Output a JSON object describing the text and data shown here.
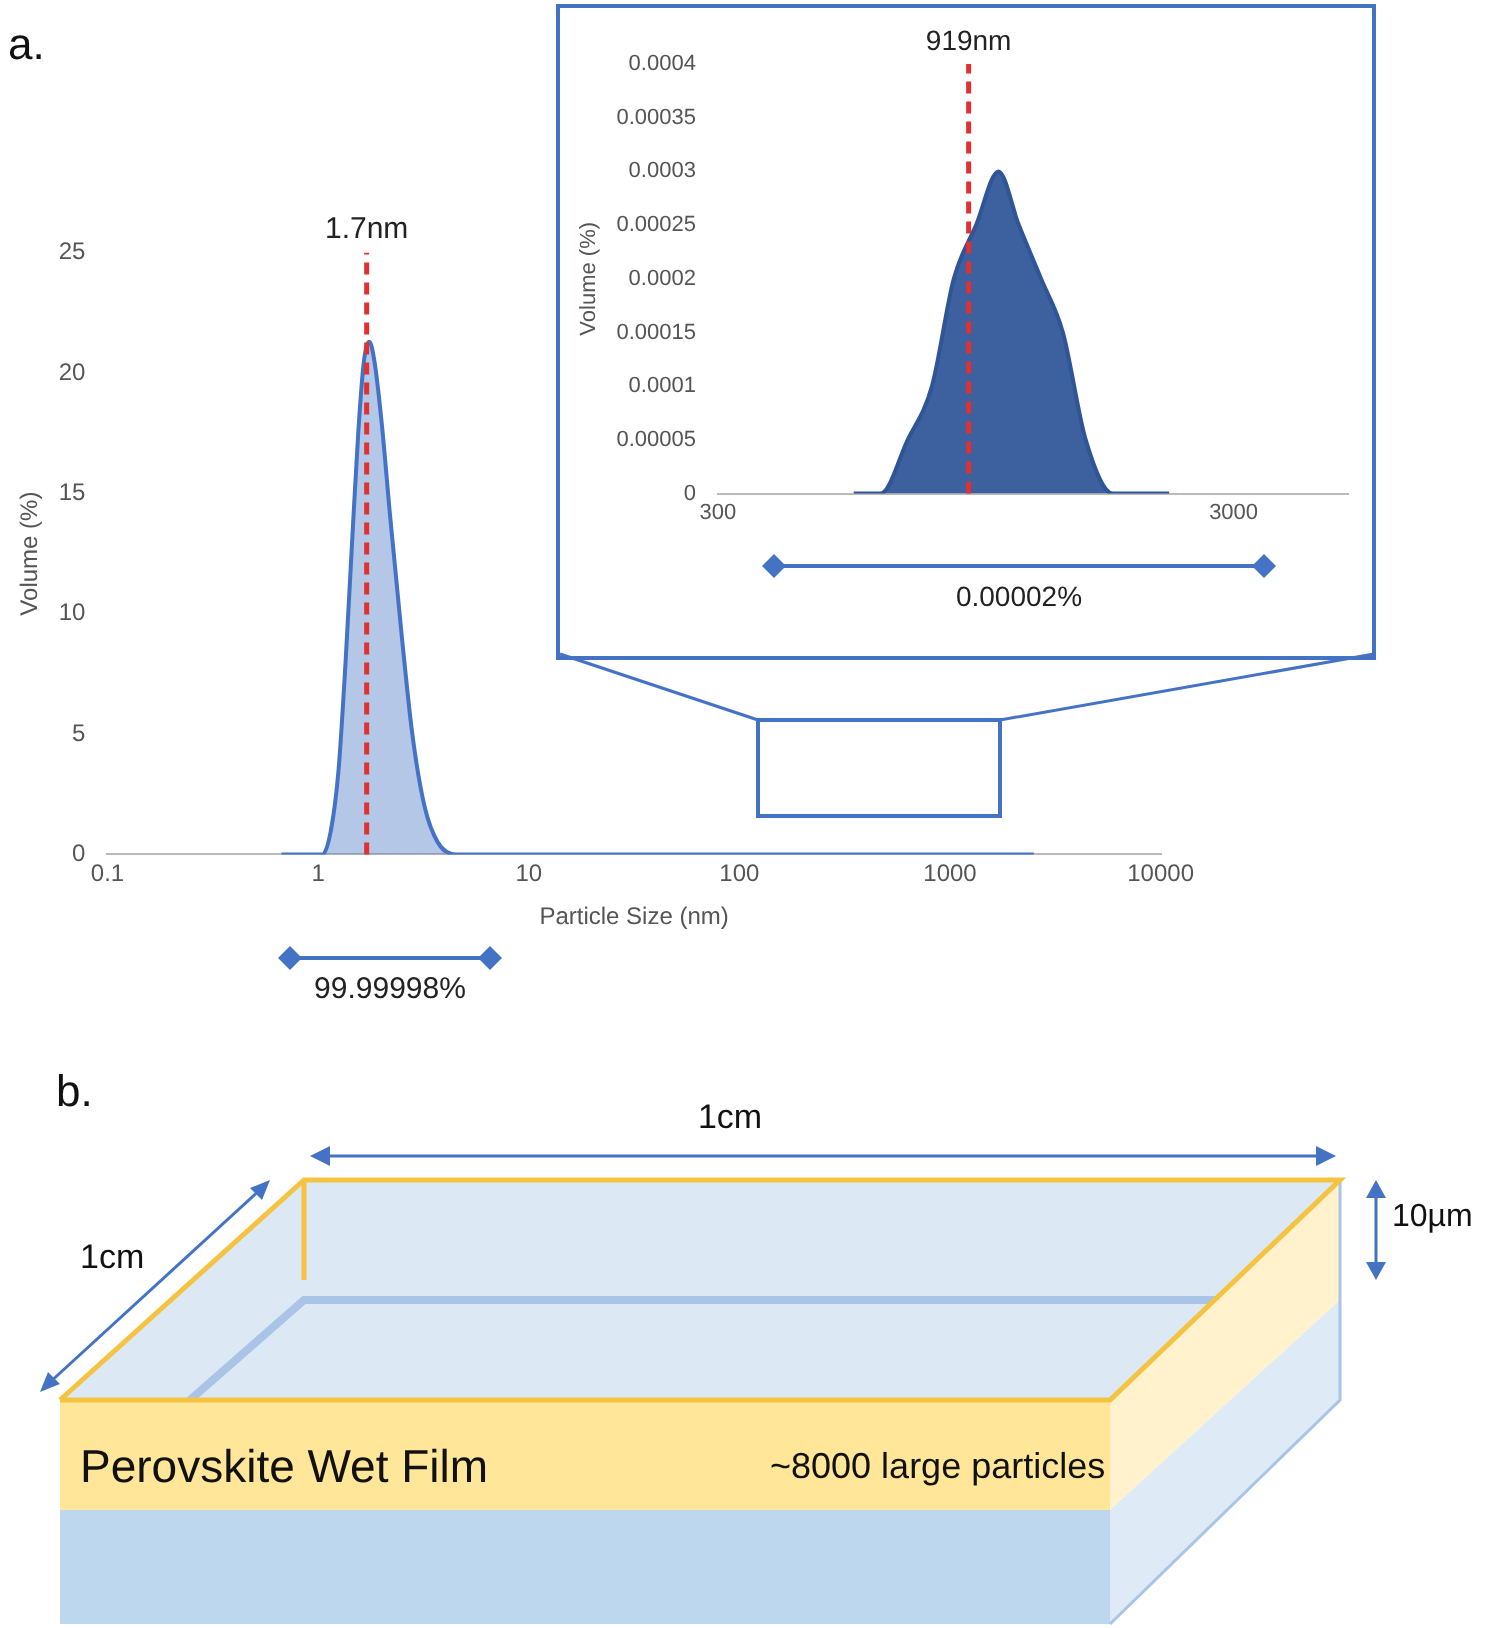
{
  "chart_data": [
    {
      "type": "area",
      "title": "a.",
      "xlabel": "Particle Size (nm)",
      "ylabel": "Volume (%)",
      "log": "x",
      "color": "#4472c4",
      "x": [
        0.67,
        1.05,
        1.15,
        1.25,
        1.35,
        1.45,
        1.55,
        1.65,
        1.75,
        1.85,
        2.0,
        2.2,
        2.5,
        2.8,
        3.2,
        3.7,
        4.5,
        2500
      ],
      "values": [
        0,
        0,
        1,
        3.5,
        8,
        13,
        17.5,
        20.5,
        21.3,
        20.5,
        18,
        14,
        9,
        5,
        2,
        0.5,
        0,
        0
      ],
      "xlim": [
        0.1,
        10000
      ],
      "xticks": [
        0.1,
        1,
        10,
        100,
        1000,
        10000
      ],
      "ylim": [
        0,
        25
      ],
      "yticks": [
        0,
        5,
        10,
        15,
        20,
        25
      ],
      "ref_lines": [
        {
          "axis": "x",
          "value": 1.7,
          "label": "1.7nm",
          "color": "#e03030",
          "line_style": "dashed"
        }
      ],
      "annotations": [
        "99.99998%"
      ],
      "marker": "none"
    },
    {
      "type": "area",
      "ylabel": "Volume (%)",
      "log": "x",
      "color": "#2f5597",
      "x": [
        550,
        620,
        700,
        780,
        860,
        950,
        1050,
        1150,
        1270,
        1400,
        1550,
        1750,
        2000,
        2250
      ],
      "values": [
        0,
        0,
        5e-05,
        0.0001,
        0.0002,
        0.00025,
        0.0003,
        0.00025,
        0.0002,
        0.00015,
        5e-05,
        0,
        0,
        0
      ],
      "xlim": [
        300,
        5000
      ],
      "xticks": [
        300,
        3000
      ],
      "ylim": [
        0,
        0.0004
      ],
      "yticks": [
        0,
        {
          "value": 5e-05,
          "label": "0.00005"
        },
        0.0001,
        0.00015,
        0.0002,
        0.00025,
        0.0003,
        0.00035,
        0.0004
      ],
      "ref_lines": [
        {
          "axis": "x",
          "value": 919,
          "label": "919nm",
          "color": "#e03030",
          "line_style": "dashed"
        }
      ],
      "annotations": [
        "0.00002%"
      ],
      "marker": "none"
    },
    {
      "type": "other",
      "title": "b.",
      "annotations": [
        "1cm",
        "1cm",
        "10µm",
        "Perovskite Wet Film",
        "~8000 large particles"
      ]
    }
  ]
}
